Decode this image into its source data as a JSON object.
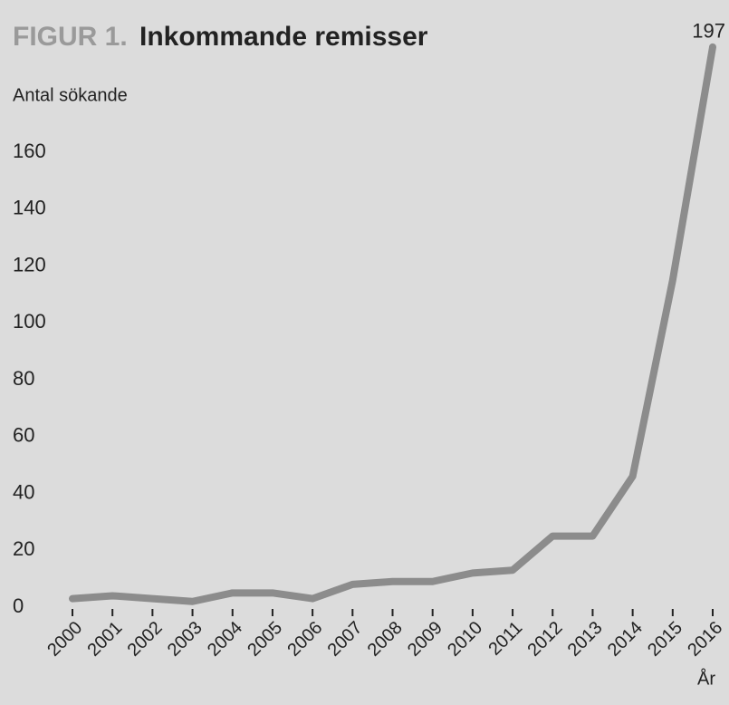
{
  "chart_data": {
    "type": "line",
    "title_prefix": "FIGUR 1.",
    "title": "Inkommande remisser",
    "y_label": "Antal sökande",
    "x_label": "År",
    "categories": [
      "2000",
      "2001",
      "2002",
      "2003",
      "2004",
      "2005",
      "2006",
      "2007",
      "2008",
      "2009",
      "2010",
      "2011",
      "2012",
      "2013",
      "2014",
      "2015",
      "2016"
    ],
    "values": [
      3,
      4,
      3,
      2,
      5,
      5,
      3,
      8,
      9,
      9,
      12,
      13,
      25,
      25,
      46,
      115,
      197
    ],
    "color": "#8c8c8c",
    "ylim": [
      0,
      200
    ],
    "yticks": [
      0,
      20,
      40,
      60,
      80,
      100,
      120,
      140,
      160
    ],
    "grid": false
  }
}
